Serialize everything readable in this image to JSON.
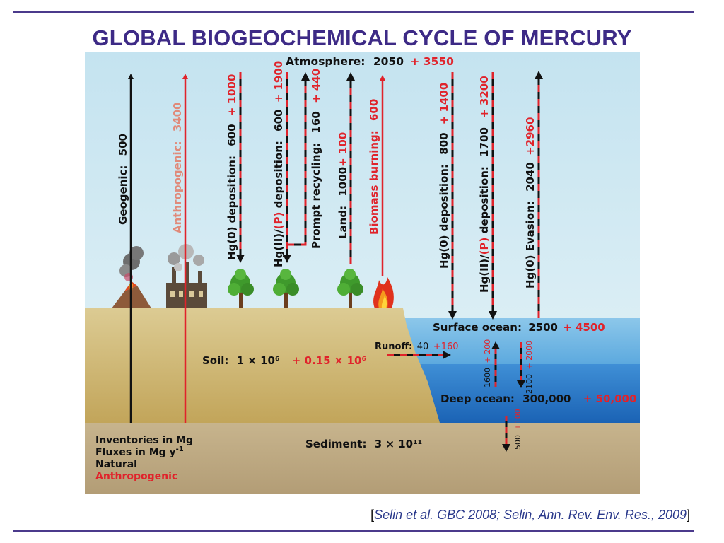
{
  "title": "GLOBAL BIOGEOCHEMICAL CYCLE OF MERCURY",
  "citation": {
    "open": "[",
    "text": "Selin et al. GBC 2008; Selin, Ann. Rev. Env. Res., 2009",
    "close": "]"
  },
  "colors": {
    "accent": "#3d2a86",
    "natural": "#111111",
    "anthropogenic": "#e0232b",
    "sky": "#c9e6f2",
    "soil": "#cdb57b",
    "sediment": "#b59f78",
    "ocean_surface": "#4fa3d9",
    "ocean_deep": "#1f73c4"
  },
  "reservoirs": {
    "atmosphere": {
      "label": "Atmosphere:",
      "natural": "2050",
      "anthro": "+ 3550"
    },
    "surface_ocean": {
      "label": "Surface ocean:",
      "natural": "2500",
      "anthro": "+ 4500"
    },
    "deep_ocean": {
      "label": "Deep ocean:",
      "natural": "300,000",
      "anthro": "+ 50,000"
    },
    "soil": {
      "label": "Soil:",
      "natural": "1 × 10⁶",
      "anthro": "+ 0.15 × 10⁶"
    },
    "sediment": {
      "label": "Sediment:",
      "natural": "3 × 10¹¹"
    }
  },
  "fluxes": {
    "geogenic": {
      "label": "Geogenic:",
      "natural": "500"
    },
    "anthropogenic": {
      "label": "Anthropogenic:",
      "anthro": "3400"
    },
    "hg0_dep_land": {
      "label": "Hg(0) deposition:",
      "natural": "600",
      "anthro": "+ 1000"
    },
    "hg2_dep_land": {
      "label_a": "Hg(II)/",
      "label_b": "(P)",
      "label_c": " deposition:",
      "natural": "600",
      "anthro": "+ 1900"
    },
    "prompt_recycling": {
      "label": "Prompt recycling:",
      "natural": "160",
      "anthro": "+ 440"
    },
    "land": {
      "label": "Land:",
      "natural": "1000",
      "anthro": "+ 100"
    },
    "biomass_burning": {
      "label": "Biomass burning:",
      "anthro": "600"
    },
    "hg0_dep_ocean": {
      "label": "Hg(0) deposition:",
      "natural": "800",
      "anthro": "+ 1400"
    },
    "hg2_dep_ocean": {
      "label_a": "Hg(II)/",
      "label_b": "(P)",
      "label_c": " deposition:",
      "natural": "1700",
      "anthro": "+ 3200"
    },
    "hg0_evasion": {
      "label": "Hg(0) Evasion:",
      "natural": "2040",
      "anthro": "+2960"
    },
    "runoff": {
      "label": "Runoff:",
      "natural": "40",
      "anthro": "+160"
    },
    "upwelling": {
      "natural": "1600",
      "anthro": "+ 200"
    },
    "downwelling": {
      "natural": "2100",
      "anthro": "+ 2000"
    },
    "burial": {
      "natural": "500",
      "anthro": "+100"
    }
  },
  "legend": {
    "line1": "Inventories in Mg",
    "line2": "Fluxes in Mg y",
    "line2_sup": "-1",
    "line3": "Natural",
    "line4": "Anthropogenic"
  },
  "icons": [
    "volcano-icon",
    "factory-icon",
    "tree-icon",
    "fire-icon"
  ]
}
